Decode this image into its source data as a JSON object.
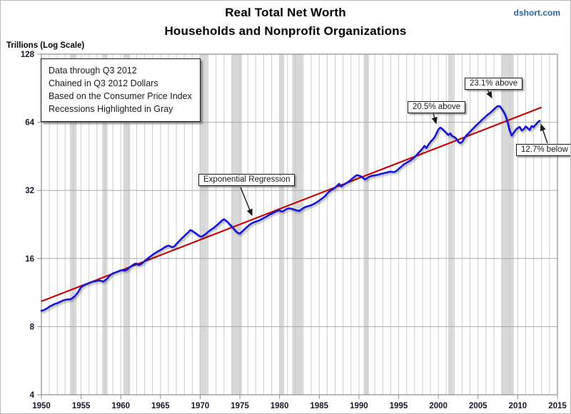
{
  "header": {
    "title_line1": "Real Total Net Worth",
    "title_line2": "Households and Nonprofit Organizations",
    "watermark": "dshort.com"
  },
  "chart_data": {
    "type": "line",
    "title": "Real Total Net Worth",
    "subtitle": "Households and Nonprofit Organizations",
    "ylabel": "Trillions (Log Scale)",
    "y_scale": "log2",
    "ylim": [
      4,
      128
    ],
    "y_ticks": [
      4,
      8,
      16,
      32,
      64,
      128
    ],
    "x_range": [
      1950,
      2015
    ],
    "x_ticks": [
      1950,
      1955,
      1960,
      1965,
      1970,
      1975,
      1980,
      1985,
      1990,
      1995,
      2000,
      2005,
      2010,
      2015
    ],
    "grid": "yearly vertical lines, log-power horizontal lines",
    "info_box": [
      "Data through Q3 2012",
      "Chained in Q3 2012 Dollars",
      "Based on the Consumer Price Index",
      "Recessions Highlighted in Gray"
    ],
    "callouts": [
      {
        "label": "Exponential Regression"
      },
      {
        "label": "20.5% above"
      },
      {
        "label": "23.1% above"
      },
      {
        "label": "12.7% below"
      }
    ],
    "colors": {
      "net_worth_line": "#1414d6",
      "regression_line": "#c80000",
      "recession_band": "#d8d8d8",
      "watermark_blue": "#2b65a5"
    },
    "recessions": [
      [
        1953.58,
        1954.42
      ],
      [
        1957.67,
        1958.33
      ],
      [
        1960.33,
        1961.17
      ],
      [
        1969.92,
        1970.92
      ],
      [
        1973.92,
        1975.25
      ],
      [
        1980.0,
        1980.58
      ],
      [
        1981.58,
        1982.92
      ],
      [
        1990.58,
        1991.25
      ],
      [
        2001.25,
        2001.92
      ],
      [
        2007.92,
        2009.5
      ]
    ],
    "series": [
      {
        "name": "Real Total Net Worth (trillions, quarterly)",
        "start_year": 1950,
        "step_years": 0.25,
        "values": [
          9.4,
          9.45,
          9.55,
          9.65,
          9.8,
          9.9,
          10.0,
          10.1,
          10.15,
          10.25,
          10.35,
          10.45,
          10.5,
          10.55,
          10.55,
          10.6,
          10.75,
          10.95,
          11.2,
          11.55,
          11.95,
          12.1,
          12.25,
          12.35,
          12.45,
          12.55,
          12.65,
          12.7,
          12.75,
          12.8,
          12.75,
          12.65,
          12.8,
          13.0,
          13.3,
          13.55,
          13.75,
          13.85,
          13.95,
          14.05,
          14.2,
          14.2,
          14.15,
          14.25,
          14.5,
          14.75,
          14.95,
          15.15,
          15.2,
          14.95,
          15.05,
          15.3,
          15.6,
          15.85,
          16.1,
          16.35,
          16.6,
          16.85,
          17.05,
          17.25,
          17.45,
          17.65,
          17.9,
          18.1,
          18.25,
          18.1,
          17.95,
          18.1,
          18.55,
          18.95,
          19.35,
          19.75,
          20.1,
          20.5,
          20.9,
          21.35,
          21.2,
          20.9,
          20.6,
          20.3,
          20.0,
          20.05,
          20.3,
          20.6,
          21.0,
          21.3,
          21.6,
          21.9,
          22.3,
          22.7,
          23.1,
          23.55,
          23.85,
          23.5,
          23.1,
          22.6,
          22.1,
          21.6,
          21.1,
          20.75,
          20.6,
          21.0,
          21.4,
          21.8,
          22.2,
          22.6,
          22.9,
          23.1,
          23.3,
          23.45,
          23.65,
          23.9,
          24.15,
          24.4,
          24.7,
          25.0,
          25.25,
          25.5,
          25.75,
          26.0,
          26.1,
          25.8,
          25.95,
          26.3,
          26.6,
          26.65,
          26.55,
          26.4,
          26.2,
          26.05,
          26.0,
          26.35,
          26.75,
          27.0,
          27.2,
          27.35,
          27.55,
          27.8,
          28.1,
          28.45,
          28.85,
          29.3,
          29.75,
          30.2,
          31.0,
          31.6,
          32.1,
          32.5,
          32.9,
          33.6,
          34.2,
          33.3,
          33.8,
          34.2,
          34.6,
          35.1,
          35.7,
          36.3,
          36.9,
          37.4,
          37.2,
          36.9,
          36.4,
          35.8,
          36.2,
          36.7,
          37.0,
          37.2,
          37.3,
          37.45,
          37.6,
          37.85,
          38.0,
          38.2,
          38.4,
          38.6,
          38.75,
          38.55,
          38.65,
          39.1,
          39.8,
          40.5,
          41.2,
          41.9,
          42.4,
          42.9,
          43.4,
          44.1,
          44.9,
          45.8,
          46.9,
          47.9,
          48.9,
          50.3,
          49.2,
          51.0,
          52.3,
          53.5,
          54.8,
          57.0,
          59.5,
          60.6,
          59.8,
          58.6,
          57.4,
          56.2,
          57.1,
          55.6,
          55.1,
          54.2,
          52.6,
          51.8,
          52.4,
          54.2,
          55.9,
          57.0,
          58.2,
          59.4,
          60.6,
          61.9,
          63.1,
          64.3,
          65.6,
          66.8,
          68.1,
          69.3,
          70.3,
          71.6,
          73.0,
          74.4,
          75.5,
          75.3,
          73.2,
          71.0,
          68.0,
          63.5,
          58.5,
          55.9,
          57.6,
          59.3,
          60.4,
          61.0,
          58.9,
          59.6,
          61.3,
          60.3,
          59.2,
          61.6,
          60.9,
          62.4,
          63.9,
          65.0
        ]
      },
      {
        "name": "Exponential Regression",
        "points": [
          [
            1950.0,
            10.35
          ],
          [
            2013.0,
            74.5
          ]
        ]
      }
    ]
  }
}
